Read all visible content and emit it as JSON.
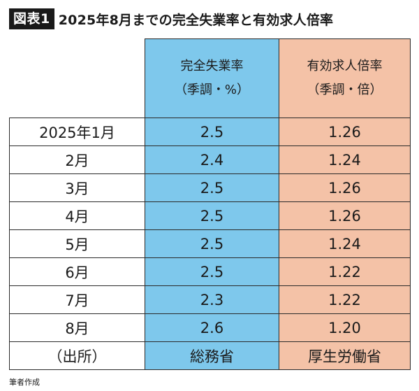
{
  "header": {
    "label": "図表1",
    "title": "2025年8月までの完全失業率と有効求人倍率"
  },
  "table": {
    "columns": [
      {
        "line1": "完全失業率",
        "line2": "（季調・%）"
      },
      {
        "line1": "有効求人倍率",
        "line2": "（季調・倍）"
      }
    ],
    "rows": [
      {
        "month": "2025年1月",
        "unemployment": "2.5",
        "jobs_ratio": "1.26"
      },
      {
        "month": "2月",
        "unemployment": "2.4",
        "jobs_ratio": "1.24"
      },
      {
        "month": "3月",
        "unemployment": "2.5",
        "jobs_ratio": "1.26"
      },
      {
        "month": "4月",
        "unemployment": "2.5",
        "jobs_ratio": "1.26"
      },
      {
        "month": "5月",
        "unemployment": "2.5",
        "jobs_ratio": "1.24"
      },
      {
        "month": "6月",
        "unemployment": "2.5",
        "jobs_ratio": "1.22"
      },
      {
        "month": "7月",
        "unemployment": "2.3",
        "jobs_ratio": "1.22"
      },
      {
        "month": "8月",
        "unemployment": "2.6",
        "jobs_ratio": "1.20"
      }
    ],
    "source_row": {
      "label": "（出所）",
      "unemployment": "総務省",
      "jobs_ratio": "厚生労働省"
    }
  },
  "footnote": "筆者作成",
  "colors": {
    "unemployment_column": "#7ec8ec",
    "jobs_ratio_column": "#f4c2a7",
    "label_background": "#1a1a1a"
  }
}
